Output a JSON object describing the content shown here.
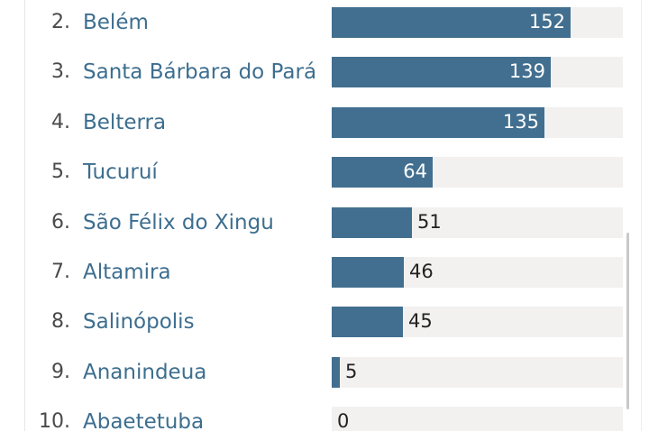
{
  "chart_data": {
    "type": "bar",
    "orientation": "horizontal",
    "xlim": [
      0,
      185
    ],
    "rows": [
      {
        "rank": "2.",
        "name": "Belém",
        "value": 152
      },
      {
        "rank": "3.",
        "name": "Santa Bárbara do Pará",
        "value": 139
      },
      {
        "rank": "4.",
        "name": "Belterra",
        "value": 135
      },
      {
        "rank": "5.",
        "name": "Tucuruí",
        "value": 64
      },
      {
        "rank": "6.",
        "name": "São Félix do Xingu",
        "value": 51
      },
      {
        "rank": "7.",
        "name": "Altamira",
        "value": 46
      },
      {
        "rank": "8.",
        "name": "Salinópolis",
        "value": 45
      },
      {
        "rank": "9.",
        "name": "Ananindeua",
        "value": 5
      },
      {
        "rank": "10.",
        "name": "Abaetetuba",
        "value": 0
      }
    ]
  },
  "colors": {
    "bar": "#426f8f",
    "track": "#f2f1f0",
    "name": "#3d6e8f",
    "rank": "#4a4a4a"
  }
}
